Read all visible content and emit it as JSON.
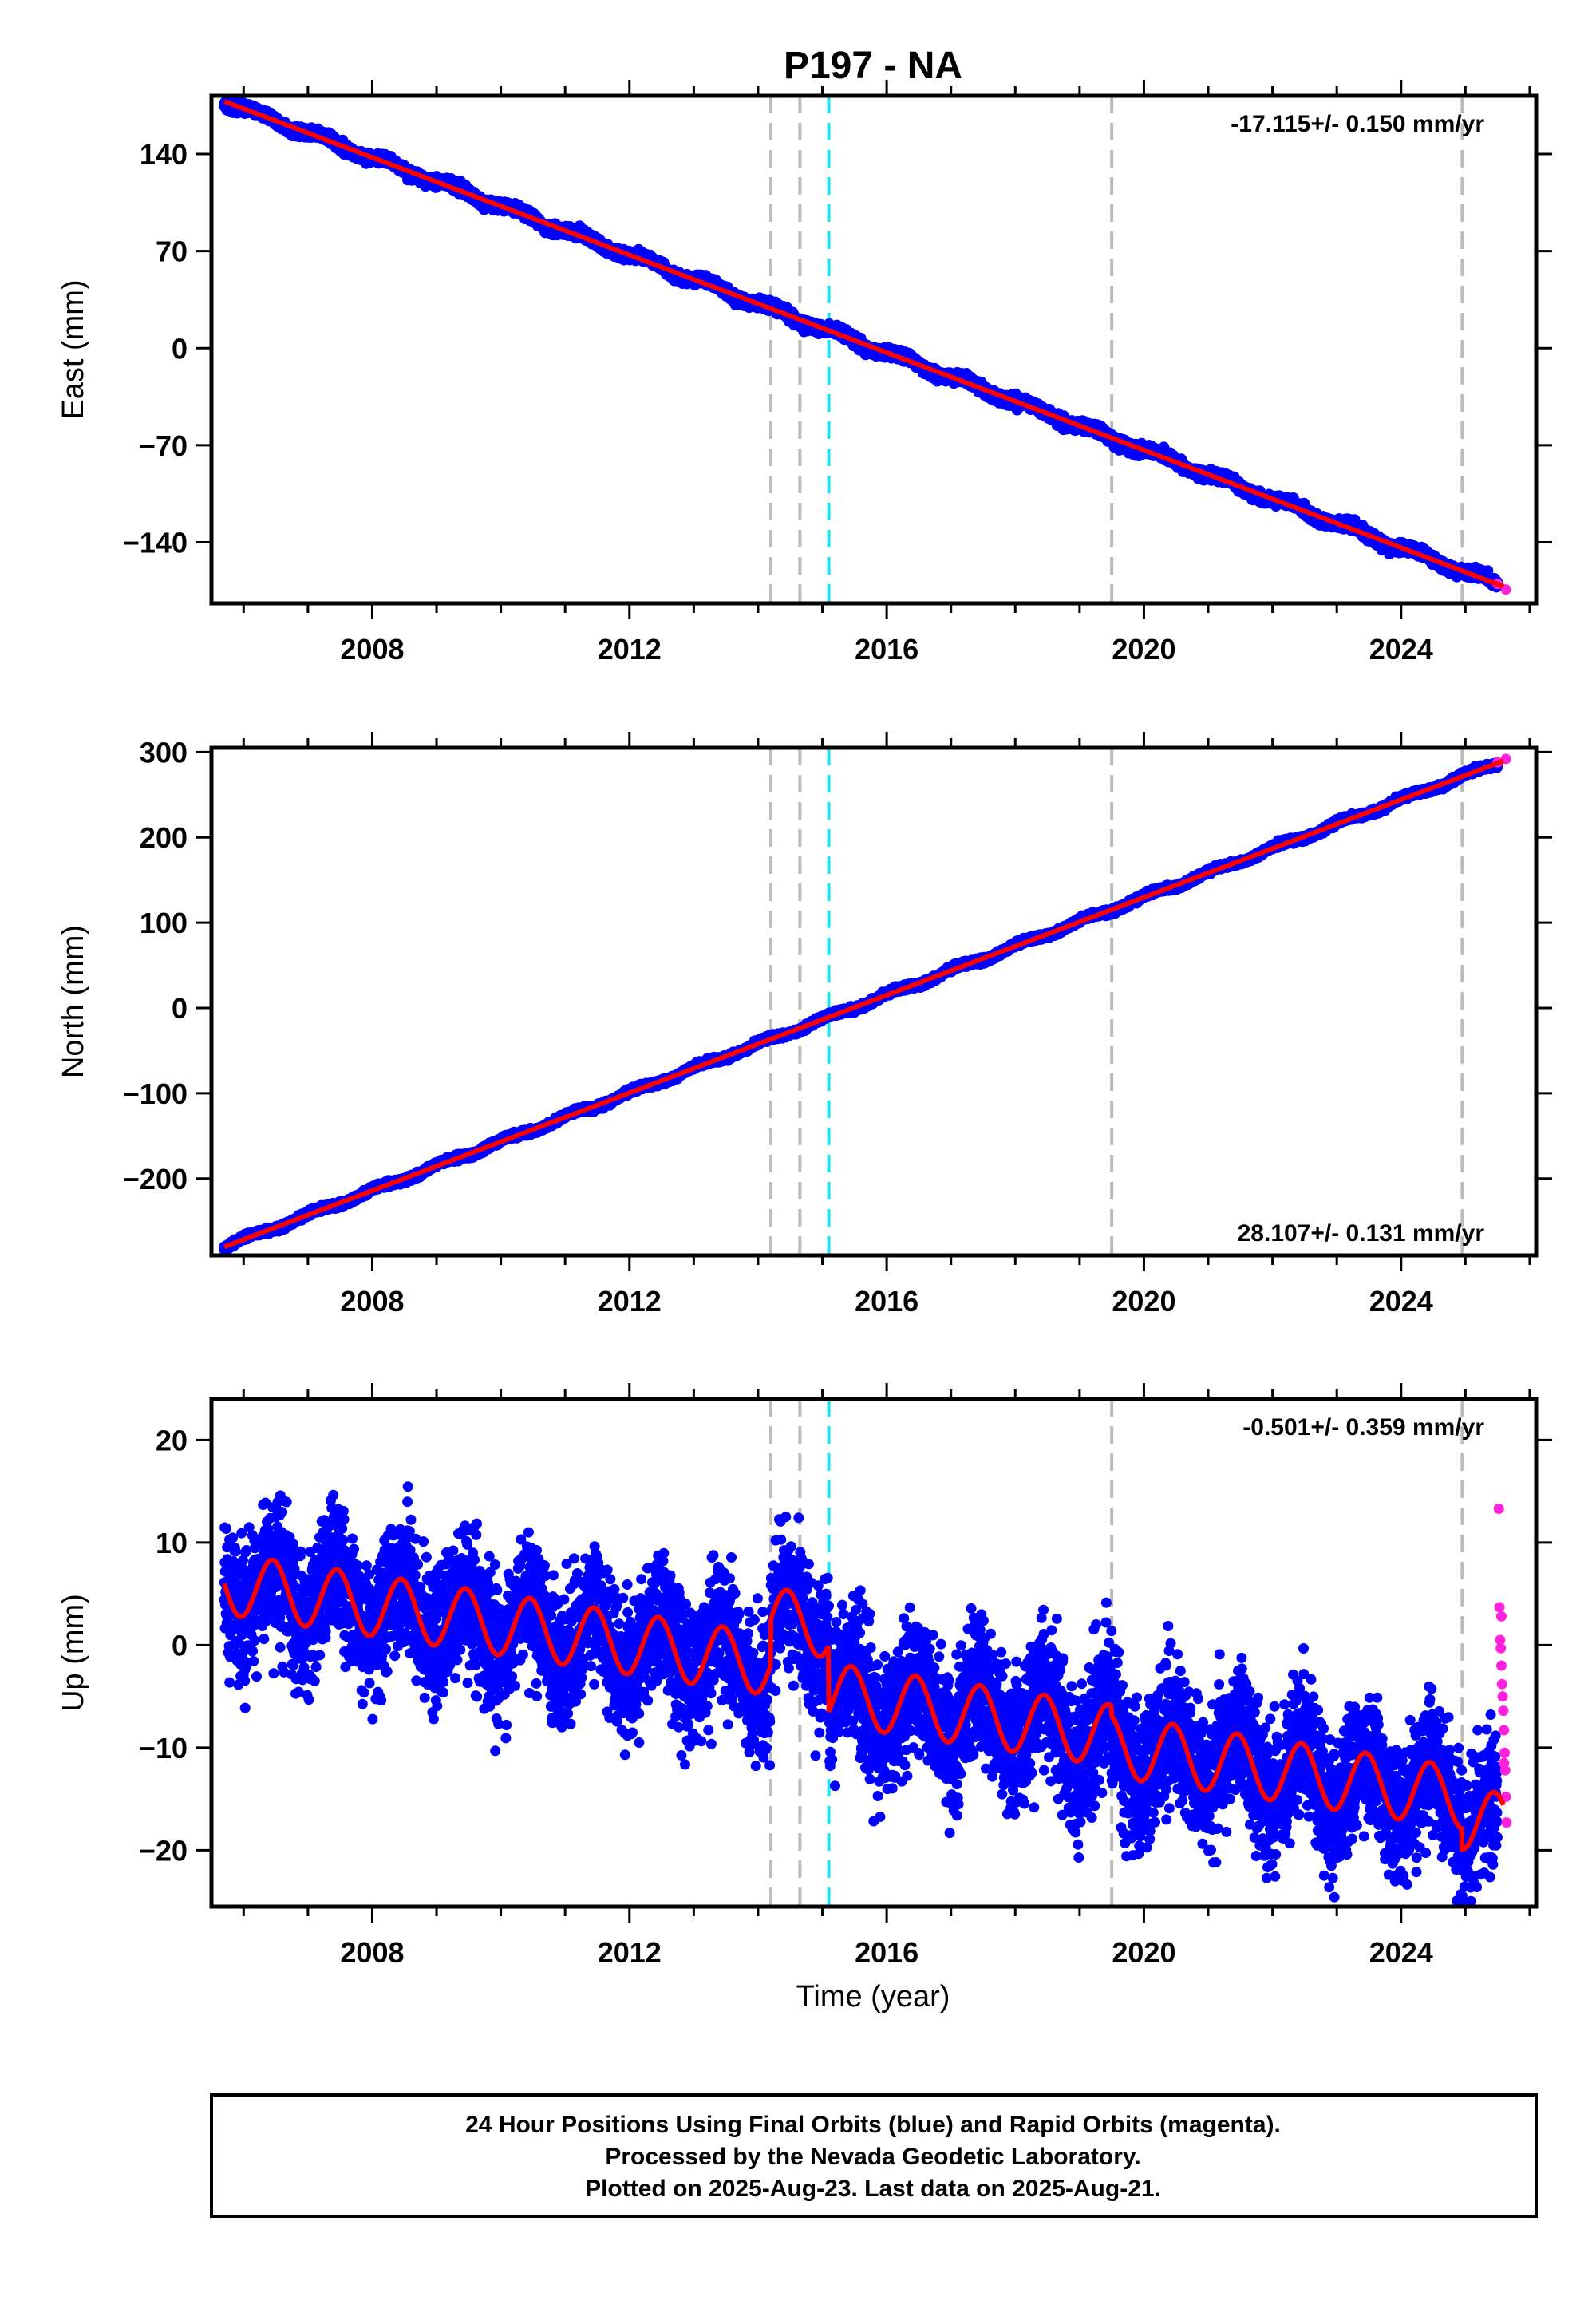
{
  "title": "P197 - NA",
  "xlabel": "Time (year)",
  "colors": {
    "final_orbits": "#0000ff",
    "rapid_orbits": "#ff22dd",
    "model": "#ff0000",
    "equipment_change": "#bbbbbb",
    "earthquake": "#22e0ee"
  },
  "footer": {
    "line1": "24 Hour Positions Using Final Orbits (blue) and Rapid Orbits (magenta).",
    "line2": "Processed by the Nevada Geodetic Laboratory.",
    "line3": "Plotted on 2025-Aug-23. Last data on 2025-Aug-21."
  },
  "chart_data": [
    {
      "type": "scatter",
      "ylabel": "East (mm)",
      "rate_label": "-17.115+/- 0.150 mm/yr",
      "rate_position": "top-right",
      "xlim": [
        2005.5,
        2026.1
      ],
      "ylim": [
        -184,
        182
      ],
      "x_ticks": [
        2008,
        2012,
        2016,
        2020,
        2024
      ],
      "y_ticks": [
        140,
        70,
        0,
        -70,
        -140
      ],
      "y_tick_labels": [
        "140",
        "70",
        "0",
        "−70",
        "−140"
      ],
      "trend": {
        "x": [
          2005.7,
          2025.6
        ],
        "y": [
          178,
          -172
        ]
      },
      "noise_sd": 3.0,
      "seasonal_amplitude": 0,
      "offsets": [],
      "rapid": {
        "x": [
          2025.5,
          2025.63
        ],
        "y": [
          -170,
          -174
        ]
      },
      "equipment_changes": [
        2014.2,
        2014.65,
        2019.5,
        2024.95
      ],
      "earthquakes": [
        2015.1
      ]
    },
    {
      "type": "scatter",
      "ylabel": "North (mm)",
      "rate_label": "28.107+/- 0.131 mm/yr",
      "rate_position": "bottom-right",
      "xlim": [
        2005.5,
        2026.1
      ],
      "ylim": [
        -290,
        305
      ],
      "x_ticks": [
        2008,
        2012,
        2016,
        2020,
        2024
      ],
      "y_ticks": [
        300,
        200,
        100,
        0,
        -100,
        -200
      ],
      "y_tick_labels": [
        "300",
        "200",
        "100",
        "0",
        "−100",
        "−200"
      ],
      "trend": {
        "x": [
          2005.7,
          2025.6
        ],
        "y": [
          -280,
          290
        ]
      },
      "noise_sd": 2.5,
      "seasonal_amplitude": 0,
      "offsets": [],
      "rapid": {
        "x": [
          2025.5,
          2025.63
        ],
        "y": [
          288,
          292
        ]
      },
      "equipment_changes": [
        2014.2,
        2014.65,
        2019.5,
        2024.95
      ],
      "earthquakes": [
        2015.1
      ]
    },
    {
      "type": "scatter",
      "ylabel": "Up (mm)",
      "rate_label": "-0.501+/- 0.359 mm/yr",
      "rate_position": "top-right",
      "xlim": [
        2005.5,
        2026.1
      ],
      "ylim": [
        -25.5,
        24
      ],
      "x_ticks": [
        2008,
        2012,
        2016,
        2020,
        2024
      ],
      "y_ticks": [
        20,
        10,
        0,
        -10,
        -20
      ],
      "y_tick_labels": [
        "20",
        "10",
        "0",
        "−10",
        "−20"
      ],
      "trend": {
        "x": [
          2005.7,
          2025.6
        ],
        "y": [
          6.0,
          -12.5
        ]
      },
      "noise_sd": 3.3,
      "seasonal_amplitude": 3.0,
      "offsets": [
        {
          "x": 2014.2,
          "dy": 4.5
        },
        {
          "x": 2015.1,
          "dy": -6.5
        },
        {
          "x": 2019.5,
          "dy": -1.0
        },
        {
          "x": 2024.95,
          "dy": -2.0
        }
      ],
      "rapid": {
        "x": [
          2025.52,
          2025.53,
          2025.54,
          2025.55,
          2025.56,
          2025.57,
          2025.58,
          2025.59,
          2025.6,
          2025.61,
          2025.62,
          2025.63,
          2025.64,
          2025.56,
          2025.6
        ],
        "y": [
          13.3,
          3.7,
          0.5,
          -0.3,
          -2.0,
          -3.8,
          -5.0,
          -6.4,
          -8.3,
          -10.5,
          -12.2,
          -14.8,
          -17.3,
          2.8,
          -11.5
        ]
      },
      "equipment_changes": [
        2014.2,
        2014.65,
        2019.5,
        2024.95
      ],
      "earthquakes": [
        2015.1
      ]
    }
  ]
}
